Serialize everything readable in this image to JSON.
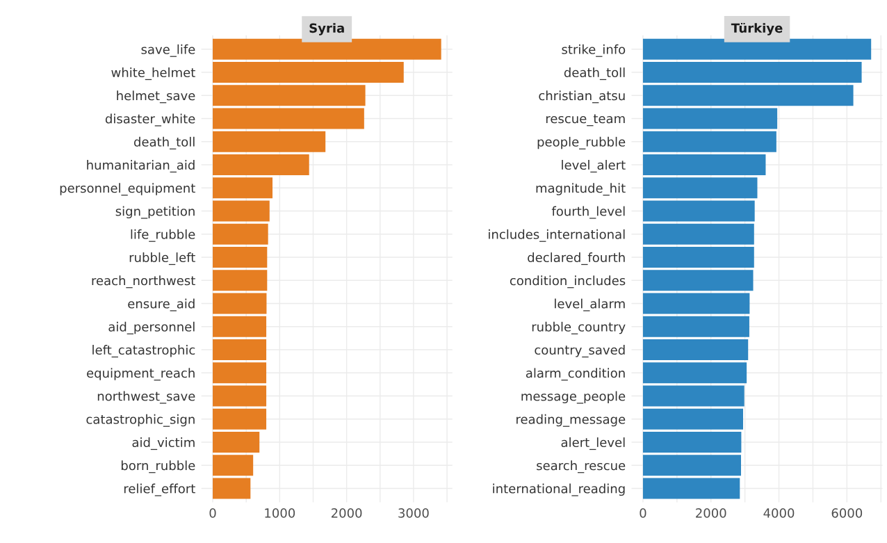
{
  "chart_data": [
    {
      "type": "bar",
      "title": "Syria",
      "orientation": "horizontal",
      "color": "#e67e22",
      "grid": true,
      "categories": [
        "save_life",
        "white_helmet",
        "helmet_save",
        "disaster_white",
        "death_toll",
        "humanitarian_aid",
        "personnel_equipment",
        "sign_petition",
        "life_rubble",
        "rubble_left",
        "reach_northwest",
        "ensure_aid",
        "aid_personnel",
        "left_catastrophic",
        "equipment_reach",
        "northwest_save",
        "catastrophic_sign",
        "aid_victim",
        "born_rubble",
        "relief_effort"
      ],
      "values": [
        3413,
        2853,
        2280,
        2262,
        1684,
        1440,
        893,
        849,
        827,
        813,
        813,
        804,
        800,
        800,
        800,
        800,
        800,
        698,
        604,
        564
      ],
      "xlim": [
        -170,
        3580
      ],
      "xticks": [
        0,
        1000,
        2000,
        3000
      ]
    },
    {
      "type": "bar",
      "title": "Türkiye",
      "orientation": "horizontal",
      "color": "#2e86c1",
      "grid": true,
      "categories": [
        "strike_info",
        "death_toll",
        "christian_atsu",
        "rescue_team",
        "people_rubble",
        "level_alert",
        "magnitude_hit",
        "fourth_level",
        "includes_international",
        "declared_fourth",
        "condition_includes",
        "level_alarm",
        "rubble_country",
        "country_saved",
        "alarm_condition",
        "message_people",
        "reading_message",
        "alert_level",
        "search_rescue",
        "international_reading"
      ],
      "values": [
        6713,
        6434,
        6189,
        3951,
        3925,
        3610,
        3365,
        3287,
        3269,
        3269,
        3243,
        3138,
        3129,
        3094,
        3051,
        2981,
        2946,
        2893,
        2885,
        2850
      ],
      "xlim": [
        -336,
        7049
      ],
      "xticks": [
        0,
        2000,
        4000,
        6000
      ]
    }
  ]
}
